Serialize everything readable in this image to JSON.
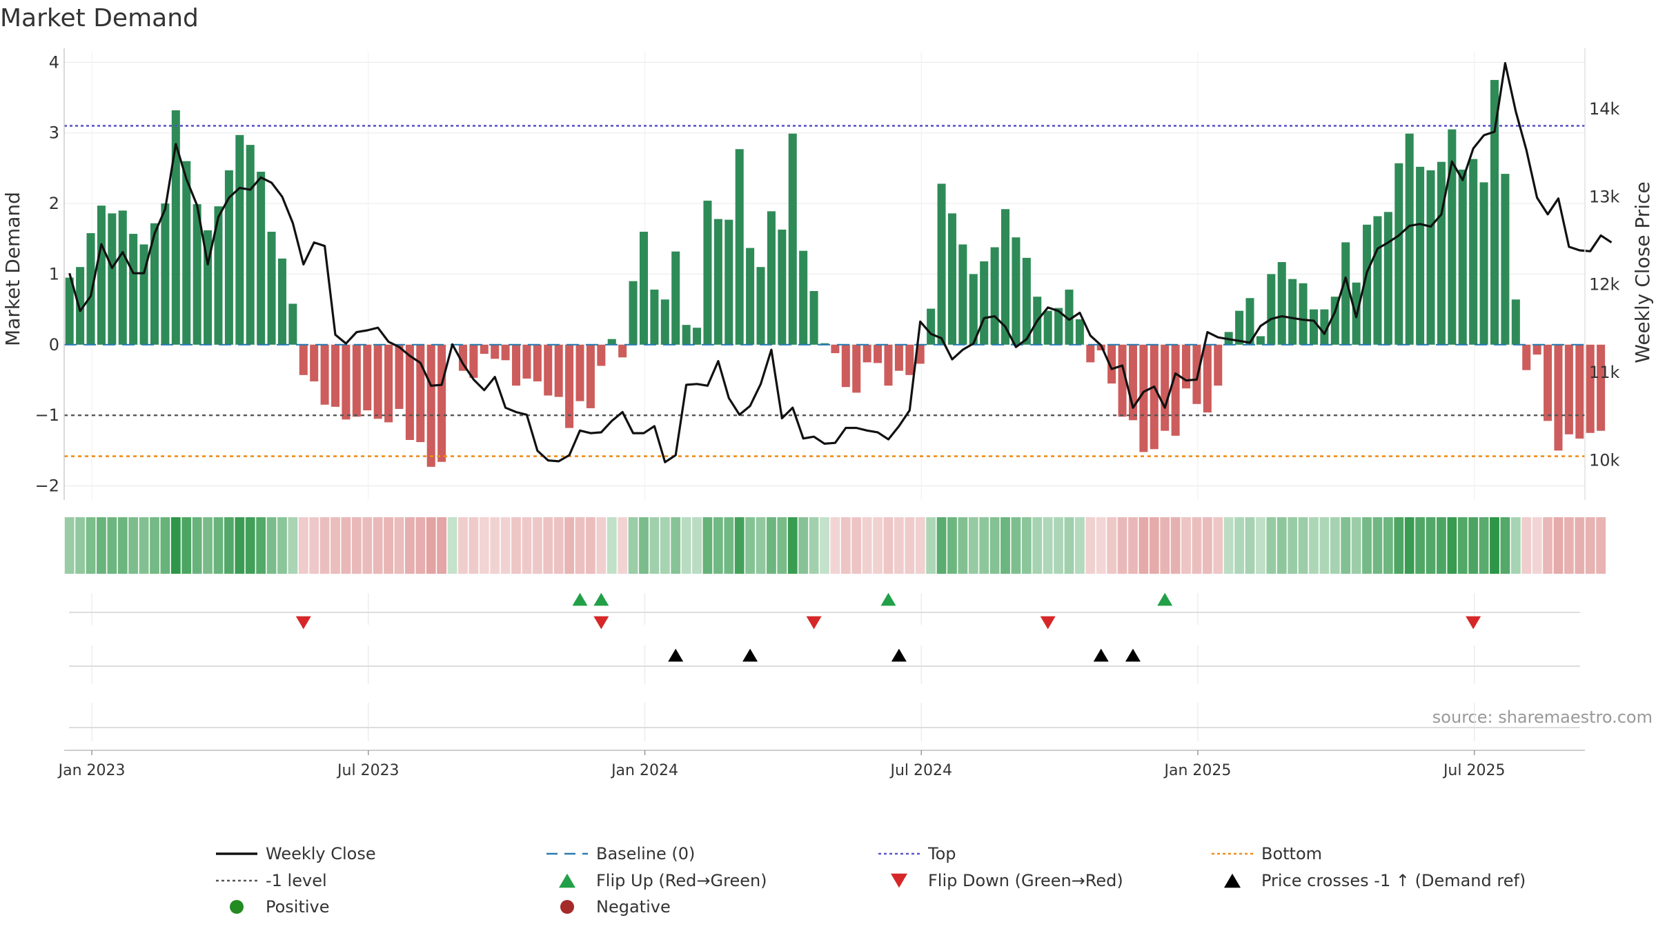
{
  "chart_data": {
    "type": "bar",
    "title": "Market Demand",
    "xlabel": "",
    "ylabel": "Market Demand",
    "y2label": "Weekly Close Price",
    "ylim": [
      -2.2,
      4.15
    ],
    "y2lim": [
      9550,
      14650
    ],
    "yticks": [
      4,
      3,
      2,
      1,
      0,
      -1,
      -2
    ],
    "ytick_labels": [
      "4",
      "3",
      "2",
      "1",
      "0",
      "−1",
      "−2"
    ],
    "y2ticks": [
      14000,
      13000,
      12000,
      11000,
      10000
    ],
    "y2tick_labels": [
      "14k",
      "13k",
      "12k",
      "11k",
      "10k"
    ],
    "date_ticks": [
      "Jan 2023",
      "Jul 2023",
      "Jan 2024",
      "Jul 2024",
      "Jan 2025",
      "Jul 2025"
    ],
    "date_tick_weeks": [
      2.6,
      28.6,
      54.6,
      80.6,
      106.6,
      132.6
    ],
    "n_weeks": 143,
    "reference_levels": {
      "top": 3.1,
      "minus_one": -1,
      "bottom": -1.58,
      "baseline": 0
    },
    "series": [
      {
        "name": "Market Demand",
        "values": [
          0.95,
          1.1,
          1.58,
          1.97,
          1.86,
          1.9,
          1.57,
          1.42,
          1.72,
          2.0,
          3.32,
          2.6,
          1.99,
          1.62,
          1.96,
          2.47,
          2.97,
          2.83,
          2.45,
          1.6,
          1.22,
          0.58,
          -0.43,
          -0.52,
          -0.85,
          -0.88,
          -1.06,
          -1.02,
          -0.93,
          -1.05,
          -1.1,
          -0.91,
          -1.35,
          -1.38,
          -1.73,
          -1.66,
          0,
          -0.37,
          -0.47,
          -0.13,
          -0.2,
          -0.22,
          -0.58,
          -0.48,
          -0.52,
          -0.72,
          -0.74,
          -1.18,
          -0.8,
          -0.9,
          -0.3,
          0.08,
          -0.18,
          0.9,
          1.6,
          0.78,
          0.64,
          1.32,
          0.28,
          0.24,
          2.04,
          1.78,
          1.77,
          2.77,
          1.37,
          1.1,
          1.89,
          1.63,
          2.99,
          1.33,
          0.76,
          0.02,
          -0.12,
          -0.6,
          -0.68,
          -0.25,
          -0.26,
          -0.58,
          -0.37,
          -0.43,
          -0.27,
          0.51,
          2.28,
          1.86,
          1.42,
          1.0,
          1.18,
          1.38,
          1.92,
          1.52,
          1.23,
          0.68,
          0.48,
          0.52,
          0.78,
          0.36,
          -0.25,
          -0.08,
          -0.55,
          -1.02,
          -1.07,
          -1.52,
          -1.48,
          -1.22,
          -1.29,
          -0.62,
          -0.84,
          -0.96,
          -0.58,
          0.18,
          0.48,
          0.66,
          0.12,
          1.0,
          1.17,
          0.93,
          0.87,
          0.5,
          0.5,
          0.68,
          1.45,
          0.88,
          1.7,
          1.82,
          1.88,
          2.57,
          2.99,
          2.52,
          2.47,
          2.59,
          3.05,
          2.48,
          2.63,
          2.3,
          3.75,
          2.42,
          0.64,
          -0.36,
          -0.14,
          -1.08,
          -1.5,
          -1.27,
          -1.33,
          -1.25,
          -1.22
        ]
      },
      {
        "name": "Weekly Close",
        "values": [
          12130,
          11700,
          11870,
          12460,
          12190,
          12370,
          12130,
          12130,
          12580,
          12860,
          13600,
          13200,
          12900,
          12230,
          12770,
          12990,
          13100,
          13080,
          13220,
          13160,
          13000,
          12700,
          12230,
          12480,
          12440,
          11430,
          11330,
          11460,
          11480,
          11510,
          11350,
          11290,
          11190,
          11110,
          10850,
          10860,
          11320,
          11100,
          10920,
          10800,
          10950,
          10600,
          10550,
          10520,
          10110,
          10000,
          9990,
          10060,
          10340,
          10310,
          10320,
          10450,
          10550,
          10310,
          10310,
          10390,
          9980,
          10060,
          10860,
          10870,
          10850,
          11130,
          10710,
          10520,
          10620,
          10870,
          11260,
          10480,
          10600,
          10250,
          10270,
          10190,
          10200,
          10370,
          10370,
          10340,
          10320,
          10240,
          10390,
          10570,
          11580,
          11440,
          11390,
          11150,
          11260,
          11330,
          11620,
          11640,
          11520,
          11290,
          11380,
          11590,
          11740,
          11700,
          11600,
          11680,
          11420,
          11310,
          11040,
          11080,
          10600,
          10780,
          10840,
          10600,
          10990,
          10910,
          10920,
          11460,
          11400,
          11380,
          11360,
          11340,
          11530,
          11610,
          11640,
          11620,
          11600,
          11590,
          11440,
          11690,
          12080,
          11630,
          12140,
          12410,
          12480,
          12560,
          12670,
          12690,
          12660,
          12800,
          13400,
          13190,
          13550,
          13700,
          13740,
          14520,
          13970,
          13530,
          12990,
          12800,
          12980,
          12430,
          12390,
          12380,
          12560,
          12480
        ]
      }
    ],
    "flip_up_weeks": [
      48,
      50,
      77,
      103
    ],
    "flip_down_weeks": [
      22,
      50,
      70,
      92,
      132
    ],
    "price_cross_weeks": [
      57,
      64,
      78,
      97,
      100
    ],
    "legend": [
      {
        "label": "Weekly Close",
        "symbol": "line-solid",
        "color": "#111111"
      },
      {
        "label": "Baseline (0)",
        "symbol": "line-dash",
        "color": "#2a7ab0"
      },
      {
        "label": "Top",
        "symbol": "line-dot",
        "color": "#5a55c8"
      },
      {
        "label": "Bottom",
        "symbol": "line-dot",
        "color": "#f08c1a"
      },
      {
        "label": "-1 level",
        "symbol": "line-dot",
        "color": "#555555"
      },
      {
        "label": "Flip Up (Red→Green)",
        "symbol": "triangle-up",
        "color": "#22a048"
      },
      {
        "label": "Flip Down (Green→Red)",
        "symbol": "triangle-down",
        "color": "#d62728"
      },
      {
        "label": "Price crosses -1 ↑ (Demand ref)",
        "symbol": "triangle-up",
        "color": "#000000"
      },
      {
        "label": "Positive",
        "symbol": "circle",
        "color": "#228b22"
      },
      {
        "label": "Negative",
        "symbol": "circle",
        "color": "#a52a2a"
      }
    ],
    "annotations": [
      "source: sharemaestro.com"
    ],
    "colors": {
      "positive_bar": "#2e8b57",
      "negative_bar": "#cd5c5c",
      "close_line": "#111111",
      "baseline": "#2a7ab0",
      "top": "#5a55c8",
      "bottom": "#f08c1a",
      "minus_one": "#555555",
      "flip_up": "#22a048",
      "flip_down": "#d62728",
      "price_cross": "#000000"
    }
  }
}
